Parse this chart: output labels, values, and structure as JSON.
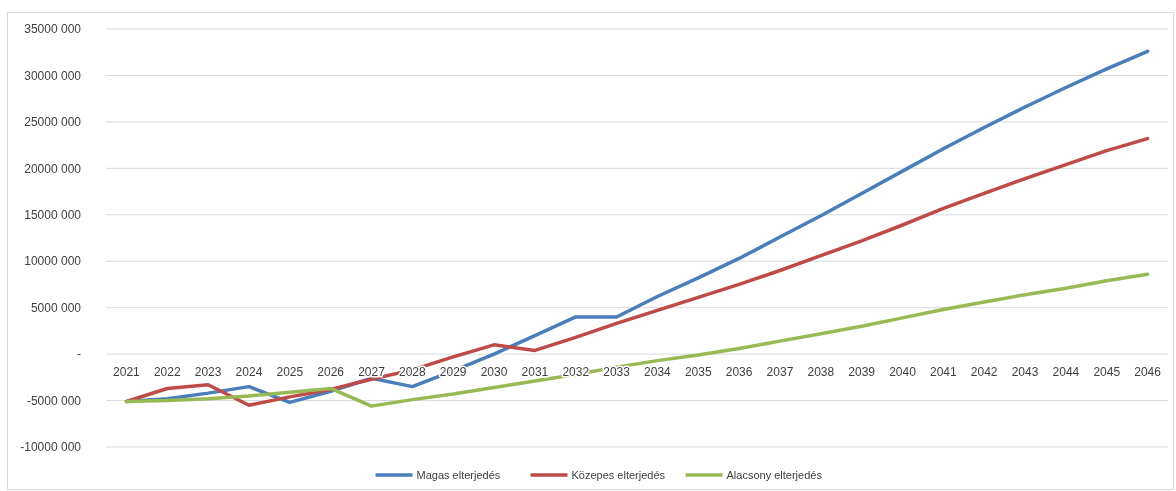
{
  "chart_data": {
    "type": "line",
    "categories": [
      "2021",
      "2022",
      "2023",
      "2024",
      "2025",
      "2026",
      "2027",
      "2028",
      "2029",
      "2030",
      "2031",
      "2032",
      "2033",
      "2034",
      "2035",
      "2036",
      "2037",
      "2038",
      "2039",
      "2040",
      "2041",
      "2042",
      "2043",
      "2044",
      "2045",
      "2046"
    ],
    "series": [
      {
        "name": "Magas elterjedés",
        "color": "#4a7ebb",
        "values": [
          -5100000,
          -4800000,
          -4200000,
          -3500000,
          -5200000,
          -4000000,
          -2600000,
          -3500000,
          -1800000,
          0,
          2000000,
          4000000,
          4000000,
          6200000,
          8200000,
          10300000,
          12600000,
          14900000,
          17300000,
          19700000,
          22100000,
          24400000,
          26600000,
          28700000,
          30700000,
          32600000
        ]
      },
      {
        "name": "Közepes elterjedés",
        "color": "#be4b48",
        "values": [
          -5100000,
          -3700000,
          -3300000,
          -5500000,
          -4600000,
          -3800000,
          -2700000,
          -1700000,
          -300000,
          1000000,
          400000,
          1800000,
          3300000,
          4700000,
          6100000,
          7500000,
          9000000,
          10600000,
          12200000,
          13900000,
          15700000,
          17300000,
          18900000,
          20400000,
          21900000,
          23200000
        ]
      },
      {
        "name": "Alacsony elterjedés",
        "color": "#98b954",
        "values": [
          -5100000,
          -5000000,
          -4800000,
          -4500000,
          -4100000,
          -3700000,
          -5600000,
          -4900000,
          -4300000,
          -3600000,
          -2900000,
          -2200000,
          -1400000,
          -700000,
          -100000,
          600000,
          1400000,
          2200000,
          3000000,
          3900000,
          4800000,
          5600000,
          6400000,
          7100000,
          7900000,
          8600000
        ]
      }
    ],
    "ylim": [
      -10000000,
      35000000
    ],
    "yticks": [
      {
        "value": -10000000,
        "label": "-10000 000"
      },
      {
        "value": -5000000,
        "label": "-5000 000"
      },
      {
        "value": 0,
        "label": "-"
      },
      {
        "value": 5000000,
        "label": "5000 000"
      },
      {
        "value": 10000000,
        "label": "10000 000"
      },
      {
        "value": 15000000,
        "label": "15000 000"
      },
      {
        "value": 20000000,
        "label": "20000 000"
      },
      {
        "value": 25000000,
        "label": "25000 000"
      },
      {
        "value": 30000000,
        "label": "30000 000"
      },
      {
        "value": 35000000,
        "label": "35000 000"
      }
    ],
    "grid": "y",
    "legend": "bottom",
    "marker": "none",
    "line_style": "solid"
  }
}
